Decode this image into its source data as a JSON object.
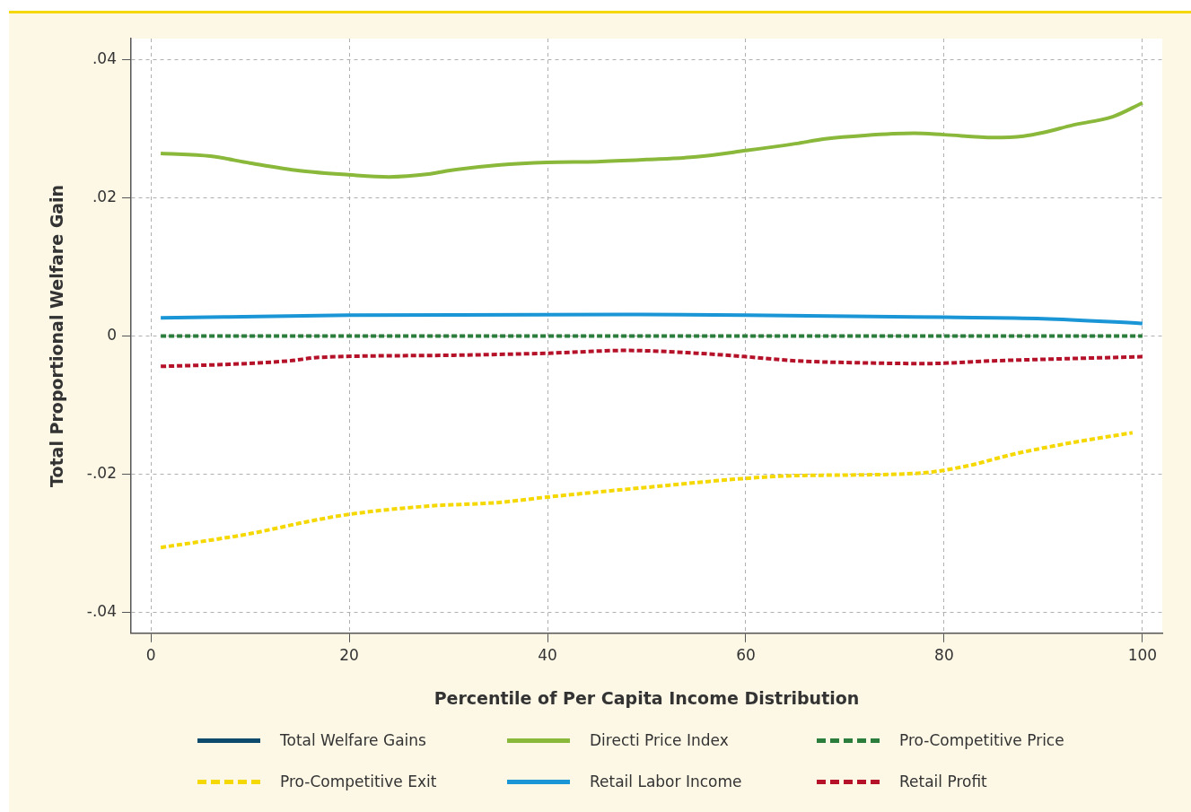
{
  "chart_data": {
    "type": "line",
    "xlabel": "Percentile of Per Capita Income Distribution",
    "ylabel": "Total Proportional Welfare Gain",
    "xlim": [
      -2,
      102
    ],
    "xticks": [
      0,
      20,
      40,
      60,
      80,
      100
    ],
    "ylim": [
      -0.043,
      0.043
    ],
    "yticks": [
      {
        "value": -0.04,
        "label": "-.04"
      },
      {
        "value": -0.02,
        "label": "-.02"
      },
      {
        "value": 0,
        "label": "0"
      },
      {
        "value": 0.02,
        "label": ".02"
      },
      {
        "value": 0.04,
        "label": ".04"
      }
    ],
    "grid": true,
    "legend": "bottom",
    "marker": "none",
    "series": [
      {
        "name": "Total Welfare Gains",
        "color": "#0d4a6b",
        "line_style": "solid"
      },
      {
        "name": "Directi Price Index",
        "color": "#8ab83a",
        "line_style": "solid",
        "x": [
          1,
          6,
          10,
          15,
          20,
          24,
          28,
          30,
          35,
          40,
          45,
          50,
          55,
          60,
          65,
          68,
          72,
          77,
          80,
          85,
          88,
          90,
          93,
          97,
          100
        ],
        "values": [
          0.0264,
          0.026,
          0.025,
          0.0239,
          0.0233,
          0.023,
          0.0234,
          0.0239,
          0.0247,
          0.0251,
          0.0252,
          0.0255,
          0.0259,
          0.0268,
          0.0278,
          0.0285,
          0.029,
          0.0293,
          0.0291,
          0.0287,
          0.0289,
          0.0294,
          0.0305,
          0.0317,
          0.0337
        ]
      },
      {
        "name": "Pro-Competitive Price",
        "color": "#2a7d3a",
        "line_style": "dashed",
        "x": [
          1,
          100
        ],
        "values": [
          0,
          0
        ]
      },
      {
        "name": "Pro-Competitive Exit",
        "color": "#f5d800",
        "line_style": "dashed",
        "x": [
          1,
          10,
          16,
          20,
          28,
          35,
          40,
          50,
          60,
          65,
          77,
          82,
          87,
          93,
          99
        ],
        "values": [
          -0.0306,
          -0.0286,
          -0.0268,
          -0.0258,
          -0.0246,
          -0.0241,
          -0.0233,
          -0.0219,
          -0.0206,
          -0.0202,
          -0.0199,
          -0.0189,
          -0.0171,
          -0.0154,
          -0.014
        ]
      },
      {
        "name": "Retail Labor Income",
        "color": "#1a96d6",
        "line_style": "solid",
        "x": [
          1,
          20,
          48,
          60,
          80,
          90,
          100
        ],
        "values": [
          0.0026,
          0.003,
          0.0031,
          0.003,
          0.0027,
          0.0025,
          0.0018
        ]
      },
      {
        "name": "Retail Profit",
        "color": "#b5122a",
        "line_style": "dashed",
        "x": [
          1,
          8,
          14,
          17,
          30,
          40,
          48,
          55,
          60,
          65,
          72,
          78,
          85,
          100
        ],
        "values": [
          -0.0044,
          -0.0041,
          -0.0036,
          -0.0031,
          -0.0028,
          -0.0025,
          -0.0021,
          -0.0025,
          -0.003,
          -0.0036,
          -0.0039,
          -0.004,
          -0.0036,
          -0.003
        ]
      }
    ]
  }
}
